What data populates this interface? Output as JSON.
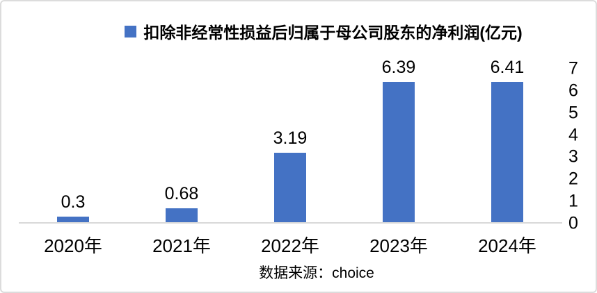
{
  "frame": {
    "background": "#ffffff",
    "border_color": "#dcdcdc"
  },
  "legend": {
    "marker_color": "#4472C4",
    "label": "扣除非经常性损益后归属于母公司股东的净利润(亿元)"
  },
  "source_note": "数据来源：choice",
  "chart_data": {
    "type": "bar",
    "title": "扣除非经常性损益后归属于母公司股东的净利润(亿元)",
    "categories": [
      "2020年",
      "2021年",
      "2022年",
      "2023年",
      "2024年"
    ],
    "values": [
      0.3,
      0.68,
      3.19,
      6.39,
      6.41
    ],
    "data_labels": [
      "0.3",
      "0.68",
      "3.19",
      "6.39",
      "6.41"
    ],
    "xlabel": "",
    "ylabel": "",
    "ylim": [
      0,
      7
    ],
    "y_ticks": [
      0,
      1,
      2,
      3,
      4,
      5,
      6,
      7
    ],
    "y_axis_side": "right",
    "grid": false,
    "legend_position": "top",
    "bar_color": "#4472C4",
    "axis_line_color": "#d9d9d9",
    "source": "数据来源：choice"
  }
}
